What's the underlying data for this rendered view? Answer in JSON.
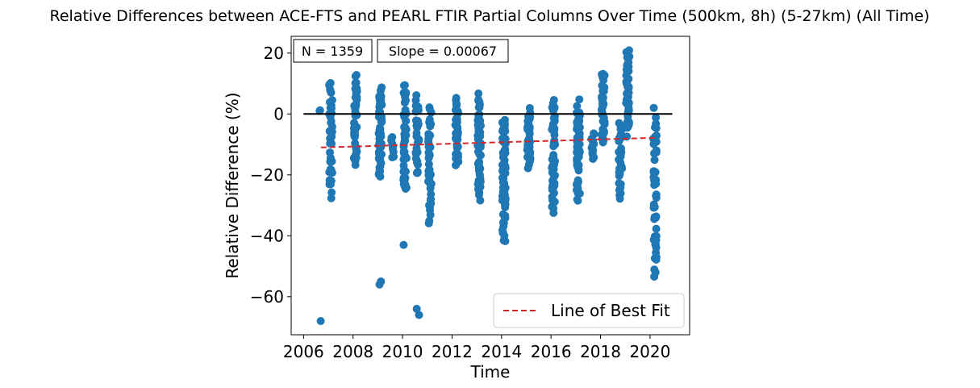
{
  "chart_data": {
    "type": "scatter",
    "title": "Relative Differences between ACE-FTS and PEARL FTIR Partial Columns Over Time (500km, 8h) (5-27km) (All Time)",
    "xlabel": "Time",
    "ylabel": "Relative Difference (%)",
    "xlim": [
      2005.5,
      2021.6
    ],
    "ylim": [
      -72.5,
      25.5
    ],
    "xticks": [
      2006,
      2008,
      2010,
      2012,
      2014,
      2016,
      2018,
      2020
    ],
    "yticks": [
      -60,
      -40,
      -20,
      0,
      20
    ],
    "point_color": "#1f77b4",
    "annotations": {
      "n_text": "N = 1359",
      "slope_text": "Slope = 0.00067"
    },
    "zero_line": {
      "x": [
        2006.0,
        2020.9
      ],
      "y": 0,
      "color": "#000000"
    },
    "fit_line": {
      "name": "Line of Best Fit",
      "x": [
        2006.7,
        2020.3
      ],
      "y": [
        -11.0,
        -7.8
      ],
      "color": "#d62728",
      "style": "dashed"
    },
    "legend": {
      "placement": "lower right",
      "entries": [
        "Line of Best Fit"
      ]
    },
    "grid": false,
    "series": [
      {
        "clusters": [
          {
            "x": 2006.7,
            "ymin": 1,
            "ymax": 1.2,
            "n": 2,
            "extra": [
              -68
            ]
          },
          {
            "x": 2007.1,
            "ymin": -29,
            "ymax": 13.5,
            "n": 45
          },
          {
            "x": 2008.1,
            "ymin": -20,
            "ymax": 16,
            "n": 40
          },
          {
            "x": 2009.1,
            "ymin": -24,
            "ymax": 10.5,
            "n": 48,
            "extra": [
              -55,
              -56
            ]
          },
          {
            "x": 2009.6,
            "ymin": -15,
            "ymax": -6.5,
            "n": 10
          },
          {
            "x": 2010.1,
            "ymin": -29,
            "ymax": 12.5,
            "n": 55,
            "extra": [
              -43
            ]
          },
          {
            "x": 2010.6,
            "ymin": -21,
            "ymax": 7,
            "n": 30,
            "extra": [
              -64,
              -66
            ]
          },
          {
            "x": 2011.1,
            "ymin": -36,
            "ymax": 3,
            "n": 45
          },
          {
            "x": 2012.2,
            "ymin": -18,
            "ymax": 6.5,
            "n": 35
          },
          {
            "x": 2013.1,
            "ymin": -29,
            "ymax": 7.5,
            "n": 55
          },
          {
            "x": 2014.1,
            "ymin": -43,
            "ymax": 0.5,
            "n": 70
          },
          {
            "x": 2015.1,
            "ymin": -19,
            "ymax": 3,
            "n": 40
          },
          {
            "x": 2016.1,
            "ymin": -34,
            "ymax": 6,
            "n": 50
          },
          {
            "x": 2017.1,
            "ymin": -30,
            "ymax": 5.5,
            "n": 50
          },
          {
            "x": 2017.7,
            "ymin": -15,
            "ymax": -6,
            "n": 15
          },
          {
            "x": 2018.1,
            "ymin": -12,
            "ymax": 17,
            "n": 45
          },
          {
            "x": 2018.8,
            "ymin": -29,
            "ymax": -2.5,
            "n": 35
          },
          {
            "x": 2019.1,
            "ymin": -8,
            "ymax": 21.5,
            "n": 55
          },
          {
            "x": 2020.2,
            "ymin": -55.5,
            "ymax": 4,
            "n": 50
          }
        ]
      }
    ]
  }
}
